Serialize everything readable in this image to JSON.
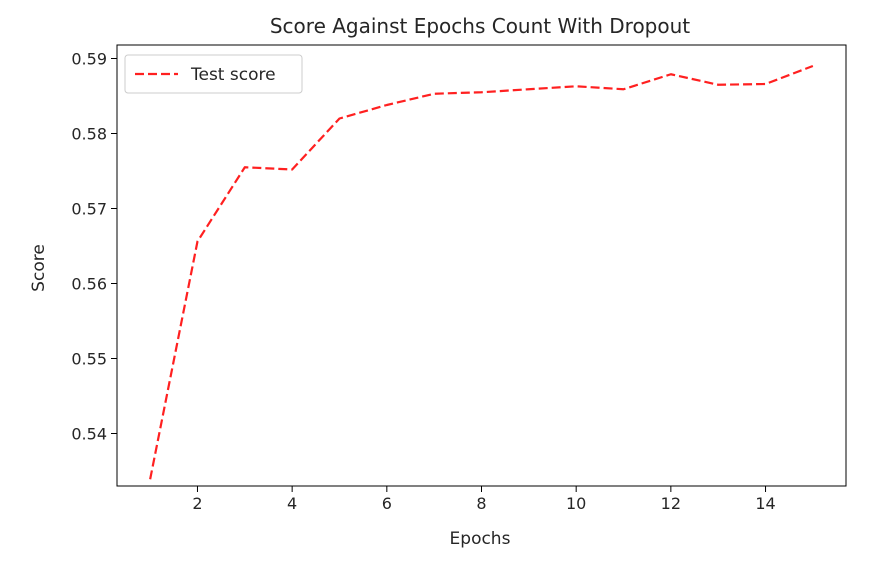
{
  "chart_data": {
    "type": "line",
    "title": "Score Against Epochs Count With Dropout",
    "xlabel": "Epochs",
    "ylabel": "Score",
    "xlim": [
      0.3,
      15.7
    ],
    "ylim": [
      0.533,
      0.5918
    ],
    "xticks": [
      2,
      4,
      6,
      8,
      10,
      12,
      14
    ],
    "yticks": [
      0.54,
      0.55,
      0.56,
      0.57,
      0.58,
      0.59
    ],
    "xtick_labels": [
      "2",
      "4",
      "6",
      "8",
      "10",
      "12",
      "14"
    ],
    "ytick_labels": [
      "0.54",
      "0.55",
      "0.56",
      "0.57",
      "0.58",
      "0.59"
    ],
    "grid": false,
    "legend_position": "upper-left",
    "series": [
      {
        "name": "Test score",
        "color": "#ff2020",
        "line_style": "dashed",
        "x": [
          1,
          2,
          3,
          4,
          5,
          6,
          7,
          8,
          9,
          10,
          11,
          12,
          13,
          14,
          15
        ],
        "values": [
          0.5339,
          0.5656,
          0.5755,
          0.5752,
          0.582,
          0.5838,
          0.5853,
          0.5855,
          0.5859,
          0.5863,
          0.5859,
          0.5879,
          0.5865,
          0.5866,
          0.589
        ]
      }
    ]
  }
}
